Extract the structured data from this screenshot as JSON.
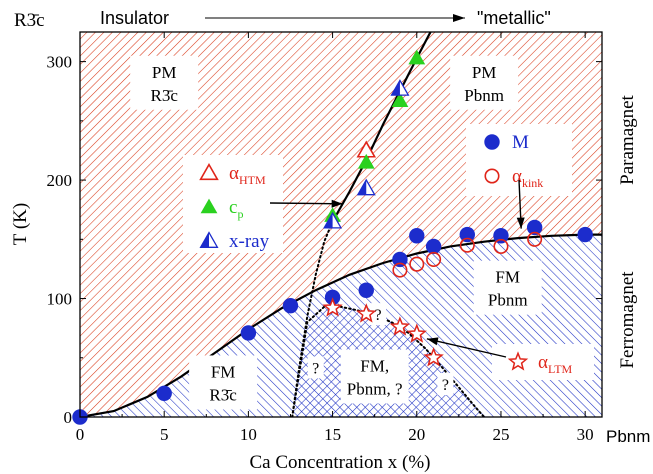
{
  "chart_data": {
    "type": "scatter",
    "title": "",
    "xlabel": "Ca Concentration x (%)",
    "ylabel": "T (K)",
    "xlim": [
      0,
      31
    ],
    "ylim": [
      0,
      325
    ],
    "x_ticks": [
      0,
      5,
      10,
      15,
      20,
      25,
      30
    ],
    "y_ticks": [
      0,
      100,
      200,
      300
    ],
    "x_tick_labels": [
      "0",
      "5",
      "10",
      "15",
      "20",
      "25",
      "30"
    ],
    "y_tick_labels": [
      "0",
      "100",
      "200",
      "300"
    ],
    "grid": false,
    "legend_position": "upper-middle and upper-right (two boxes)",
    "top_annotations": {
      "left_symbol": "R3̄c",
      "left": "Insulator",
      "right": "\"metallic\""
    },
    "axis_end_labels": {
      "right_x": "Pbnm"
    },
    "right_labels": {
      "upper": "Paramagnet",
      "lower": "Ferromagnet"
    },
    "regions": [
      {
        "line1": "PM",
        "line2": "R3̄c",
        "x": 5,
        "y": 283
      },
      {
        "line1": "PM",
        "line2": "Pbnm",
        "x": 24,
        "y": 283
      },
      {
        "line1": "FM",
        "line2": "Pbnm",
        "x": 25.4,
        "y": 110
      },
      {
        "line1": "FM",
        "line2": "R3̄c",
        "x": 8.5,
        "y": 30
      },
      {
        "line1": "FM,",
        "line2": "Pbnm, ?",
        "x": 17.5,
        "y": 35
      }
    ],
    "question_marks": [
      {
        "x": 17.7,
        "y": 86
      },
      {
        "x": 14.0,
        "y": 41
      },
      {
        "x": 21.7,
        "y": 27
      }
    ],
    "series": [
      {
        "name": "M",
        "marker": "filled-circle",
        "color": "#1c2ccc",
        "x": [
          0,
          5,
          10,
          12.5,
          15,
          17,
          19,
          20,
          21,
          23,
          25,
          27,
          30
        ],
        "y": [
          0,
          20,
          71,
          94,
          101,
          107,
          133,
          153,
          144,
          154,
          153,
          160,
          154
        ]
      },
      {
        "name": "αkink",
        "marker": "open-circle",
        "color": "#e0251a",
        "x": [
          19,
          20,
          21,
          23,
          25,
          27
        ],
        "y": [
          124,
          129,
          133,
          145,
          144,
          150
        ]
      },
      {
        "name": "αHTM",
        "marker": "open-triangle",
        "color": "#e0251a",
        "x": [
          17
        ],
        "y": [
          225
        ]
      },
      {
        "name": "cp",
        "marker": "filled-triangle",
        "color": "#2ad11f",
        "x": [
          15,
          17,
          19,
          20
        ],
        "y": [
          170,
          215,
          267,
          303
        ]
      },
      {
        "name": "x-ray",
        "marker": "half-triangle",
        "color": "#1c2ccc",
        "x": [
          15,
          17,
          19
        ],
        "y": [
          165,
          193,
          277
        ]
      },
      {
        "name": "αLTM",
        "marker": "open-star",
        "color": "#e0251a",
        "x": [
          15,
          17,
          19,
          20,
          21
        ],
        "y": [
          92,
          87,
          76,
          70,
          50
        ]
      }
    ],
    "curves": [
      {
        "label": "PM-FM transition",
        "style": "solid",
        "x": [
          0,
          2,
          4,
          6,
          8,
          10,
          12,
          14,
          16,
          18,
          20,
          22,
          24,
          26,
          28,
          30,
          31
        ],
        "y": [
          0,
          5,
          17,
          34,
          54,
          74,
          92,
          107,
          120,
          130,
          138,
          144,
          148,
          151,
          153,
          154,
          154
        ]
      },
      {
        "label": "structural boundary",
        "style": "solid",
        "x": [
          15,
          16,
          17,
          18,
          19,
          20,
          21
        ],
        "y": [
          165,
          190,
          217,
          247,
          275,
          303,
          330
        ]
      },
      {
        "label": "structural boundary extrapolated",
        "style": "dotted",
        "x": [
          12.6,
          13,
          13.5,
          14,
          14.5,
          15
        ],
        "y": [
          0,
          40,
          85,
          120,
          148,
          165
        ]
      },
      {
        "label": "LTM dome",
        "style": "dotted",
        "x": [
          12.6,
          13.5,
          14.5,
          15.5,
          16.5,
          17.5,
          18.5,
          19.5,
          20.5,
          21.5,
          22.5,
          23.5,
          24
        ],
        "y": [
          0,
          80,
          93,
          93,
          90,
          86,
          80,
          71,
          58,
          42,
          25,
          8,
          0
        ]
      }
    ],
    "legend_boxes": [
      {
        "entries": [
          {
            "symbol": "open-triangle",
            "color": "#e0251a",
            "label": "α",
            "sub": "HTM"
          },
          {
            "symbol": "filled-triangle",
            "color": "#2ad11f",
            "label": "c",
            "sub": "p"
          },
          {
            "symbol": "half-triangle",
            "color": "#1c2ccc",
            "label": "x-ray",
            "sub": ""
          }
        ]
      },
      {
        "entries": [
          {
            "symbol": "filled-circle",
            "color": "#1c2ccc",
            "label": "M",
            "sub": ""
          },
          {
            "symbol": "open-circle",
            "color": "#e0251a",
            "label": "α",
            "sub": "kink"
          }
        ]
      },
      {
        "entries": [
          {
            "symbol": "open-star",
            "color": "#e0251a",
            "label": "α",
            "sub": "LTM"
          }
        ]
      }
    ]
  }
}
